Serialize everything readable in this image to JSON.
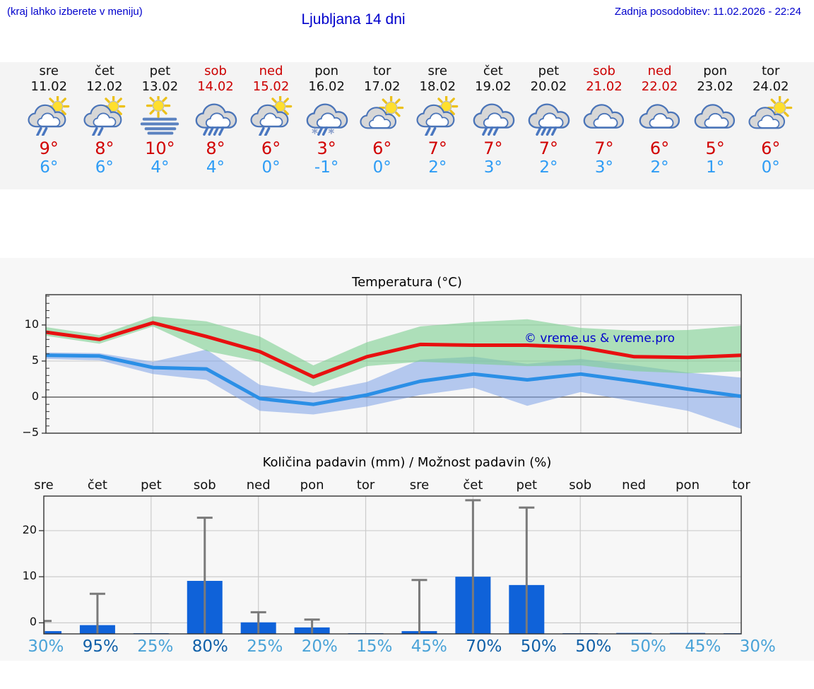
{
  "header": {
    "menu_hint": "(kraj lahko izberete v meniju)",
    "title": "Ljubljana 14 dni",
    "last_update": "Zadnja posodobitev: 11.02.2026 - 22:24"
  },
  "colors": {
    "header_blue": "#0000cc",
    "max_temp_red": "#d10000",
    "min_temp_blue": "#2e9cf5",
    "weekend_red": "#cc0000",
    "strip_bg": "#f4f4f4",
    "figure_bg": "#f7f7f7",
    "temp_line_max": "#e81010",
    "temp_line_min": "#2b8fe6",
    "band_max": "#7ccf8f",
    "band_min": "#7da3e8",
    "bar_blue": "#0f62d9",
    "whisker_gray": "#7a7a7a",
    "pct_dark": "#1060a8",
    "pct_light": "#4aa3d8",
    "grid_gray": "#cccccc",
    "axis_color": "#333333",
    "zero_line": "#555555",
    "icon_sun_fill": "#ffdf2e",
    "icon_sun_ray": "#ecc11b",
    "icon_cloud_back": "#d7d7d7",
    "icon_cloud_front": "#ffffff",
    "icon_outline_blue": "#4a74b8",
    "icon_rain_blue": "#4a77c0",
    "icon_fog_blue": "#5b82c0",
    "icon_flake": "#8fa3cc"
  },
  "forecast_days": [
    {
      "name": "sre",
      "date": "11.02",
      "weekend": false,
      "icon": "sun-cloud-rain",
      "tmax": "9°",
      "tmin": "6°"
    },
    {
      "name": "čet",
      "date": "12.02",
      "weekend": false,
      "icon": "sun-cloud-rain",
      "tmax": "8°",
      "tmin": "6°"
    },
    {
      "name": "pet",
      "date": "13.02",
      "weekend": false,
      "icon": "sun-fog",
      "tmax": "10°",
      "tmin": "4°"
    },
    {
      "name": "sob",
      "date": "14.02",
      "weekend": true,
      "icon": "cloud-rain-heavy",
      "tmax": "8°",
      "tmin": "4°"
    },
    {
      "name": "ned",
      "date": "15.02",
      "weekend": true,
      "icon": "sun-cloud-rain",
      "tmax": "6°",
      "tmin": "0°"
    },
    {
      "name": "pon",
      "date": "16.02",
      "weekend": false,
      "icon": "cloud-sleet",
      "tmax": "3°",
      "tmin": "-1°"
    },
    {
      "name": "tor",
      "date": "17.02",
      "weekend": false,
      "icon": "sun-cloud",
      "tmax": "6°",
      "tmin": "0°"
    },
    {
      "name": "sre",
      "date": "18.02",
      "weekend": false,
      "icon": "sun-cloud-rain",
      "tmax": "7°",
      "tmin": "2°"
    },
    {
      "name": "čet",
      "date": "19.02",
      "weekend": false,
      "icon": "cloud-rain",
      "tmax": "7°",
      "tmin": "3°"
    },
    {
      "name": "pet",
      "date": "20.02",
      "weekend": false,
      "icon": "cloud-rain-heavy",
      "tmax": "7°",
      "tmin": "2°"
    },
    {
      "name": "sob",
      "date": "21.02",
      "weekend": true,
      "icon": "cloudy",
      "tmax": "7°",
      "tmin": "3°"
    },
    {
      "name": "ned",
      "date": "22.02",
      "weekend": true,
      "icon": "cloudy",
      "tmax": "6°",
      "tmin": "2°"
    },
    {
      "name": "pon",
      "date": "23.02",
      "weekend": false,
      "icon": "cloudy",
      "tmax": "5°",
      "tmin": "1°"
    },
    {
      "name": "tor",
      "date": "24.02",
      "weekend": false,
      "icon": "sun-cloud",
      "tmax": "6°",
      "tmin": "0°"
    }
  ],
  "chart_data": [
    {
      "type": "line",
      "title": "Temperatura (°C)",
      "watermark": "© vreme.us & vreme.pro",
      "x_categories": [
        "sre 11.02",
        "čet 12.02",
        "pet 13.02",
        "sob 14.02",
        "ned 15.02",
        "pon 16.02",
        "tor 17.02",
        "sre 18.02",
        "čet 19.02",
        "pet 20.02",
        "sob 21.02",
        "ned 22.02",
        "pon 23.02",
        "tor 24.02"
      ],
      "ylim": [
        -5,
        14.2
      ],
      "yticks": [
        -5,
        0,
        5,
        10
      ],
      "grid": true,
      "grid_vertical_at_days": [
        3,
        5,
        7,
        9,
        11,
        13
      ],
      "series": [
        {
          "name": "max temperature",
          "values": [
            9.0,
            8.0,
            10.3,
            8.4,
            6.3,
            2.8,
            5.6,
            7.3,
            7.2,
            7.2,
            6.9,
            5.6,
            5.5,
            5.8
          ]
        },
        {
          "name": "min temperature",
          "values": [
            5.8,
            5.7,
            4.1,
            3.9,
            -0.2,
            -1.0,
            0.3,
            2.2,
            3.2,
            2.4,
            3.2,
            2.2,
            1.1,
            0.1
          ]
        }
      ],
      "bands": [
        {
          "name": "max temperature range",
          "upper": [
            9.7,
            8.6,
            11.2,
            10.5,
            8.4,
            4.4,
            7.6,
            9.8,
            10.4,
            10.8,
            9.6,
            9.2,
            9.3,
            9.9
          ],
          "lower": [
            8.5,
            7.4,
            9.8,
            6.4,
            4.9,
            1.5,
            4.3,
            4.9,
            4.6,
            4.3,
            4.4,
            3.6,
            3.3,
            3.6
          ]
        },
        {
          "name": "min temperature range",
          "upper": [
            6.2,
            6.1,
            4.9,
            6.6,
            1.7,
            0.6,
            2.1,
            5.2,
            5.6,
            4.6,
            5.3,
            4.4,
            3.4,
            2.7
          ],
          "lower": [
            5.3,
            5.1,
            3.2,
            2.4,
            -1.9,
            -2.4,
            -1.3,
            0.3,
            1.3,
            -1.2,
            0.7,
            -0.6,
            -1.9,
            -4.4
          ]
        }
      ]
    },
    {
      "type": "bar",
      "title": "Količina padavin (mm) / Možnost padavin (%)",
      "categories": [
        "sre",
        "čet",
        "pet",
        "sob",
        "ned",
        "pon",
        "tor",
        "sre",
        "čet",
        "pet",
        "sob",
        "ned",
        "pon",
        "tor"
      ],
      "ylim": [
        -2.4,
        27.5
      ],
      "yticks": [
        0,
        10,
        20
      ],
      "grid": true,
      "grid_vertical_at_days": [
        3,
        5,
        7,
        9,
        11,
        13
      ],
      "note": "bars and whiskers are drawn from the axis bottom (-2.4); heights below are measured from the axis bottom in mm",
      "bar_heights_mm": [
        0.6,
        1.9,
        0.15,
        11.5,
        2.5,
        1.4,
        0.15,
        0.6,
        12.4,
        10.6,
        0.15,
        0.2,
        0.2,
        0.15
      ],
      "whisker_tops_mm": [
        2.8,
        8.7,
        0,
        25.2,
        4.7,
        3.1,
        0,
        11.7,
        29.0,
        27.4,
        0,
        0,
        0,
        0
      ],
      "probabilities": [
        {
          "label": "30%",
          "shade": "light"
        },
        {
          "label": "95%",
          "shade": "dark"
        },
        {
          "label": "25%",
          "shade": "light"
        },
        {
          "label": "80%",
          "shade": "dark"
        },
        {
          "label": "25%",
          "shade": "light"
        },
        {
          "label": "20%",
          "shade": "light"
        },
        {
          "label": "15%",
          "shade": "light"
        },
        {
          "label": "45%",
          "shade": "light"
        },
        {
          "label": "70%",
          "shade": "dark"
        },
        {
          "label": "50%",
          "shade": "dark"
        },
        {
          "label": "50%",
          "shade": "dark"
        },
        {
          "label": "50%",
          "shade": "light"
        },
        {
          "label": "45%",
          "shade": "light"
        },
        {
          "label": "30%",
          "shade": "light"
        }
      ]
    }
  ]
}
